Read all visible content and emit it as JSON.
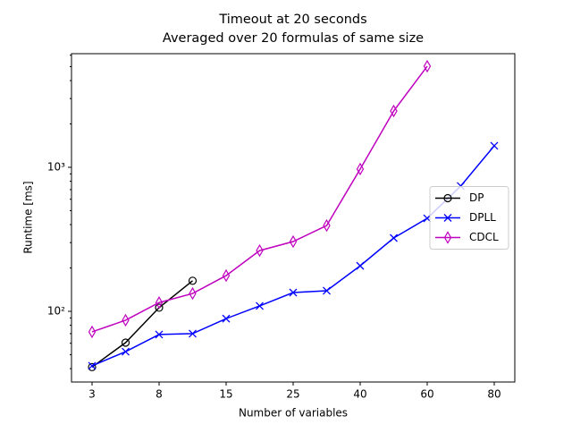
{
  "chart_data": {
    "type": "line",
    "title": "Timeout at 20 seconds",
    "subtitle": "Averaged over 20 formulas of same size",
    "x_label": "Number of variables",
    "y_label": "Runtime [ms]",
    "categories": [
      "3",
      null,
      "8",
      null,
      "15",
      null,
      "25",
      null,
      "40",
      null,
      "60",
      null,
      "80"
    ],
    "ylim": [
      32.3,
      6150
    ],
    "yticks": [
      {
        "value": 100,
        "label": "10²"
      },
      {
        "value": 1000,
        "label": "10³"
      }
    ],
    "log_y": true,
    "legend": "center right",
    "series": [
      {
        "name": "DP",
        "color": "#000000",
        "marker": "o",
        "values": [
          41,
          60.6,
          106,
          163,
          null,
          null,
          null,
          null,
          null,
          null,
          null,
          null,
          null
        ]
      },
      {
        "name": "DPLL",
        "color": "#0000ff",
        "marker": "x",
        "values": [
          41.8,
          52.5,
          69,
          70,
          89,
          109,
          135,
          139,
          207,
          323,
          442,
          741,
          1410
        ]
      },
      {
        "name": "CDCL",
        "color": "#bf00bf",
        "marker": "d",
        "values": [
          72,
          86.7,
          115,
          133,
          177,
          264,
          305,
          394,
          972,
          2460,
          5030,
          null,
          null
        ]
      }
    ]
  }
}
